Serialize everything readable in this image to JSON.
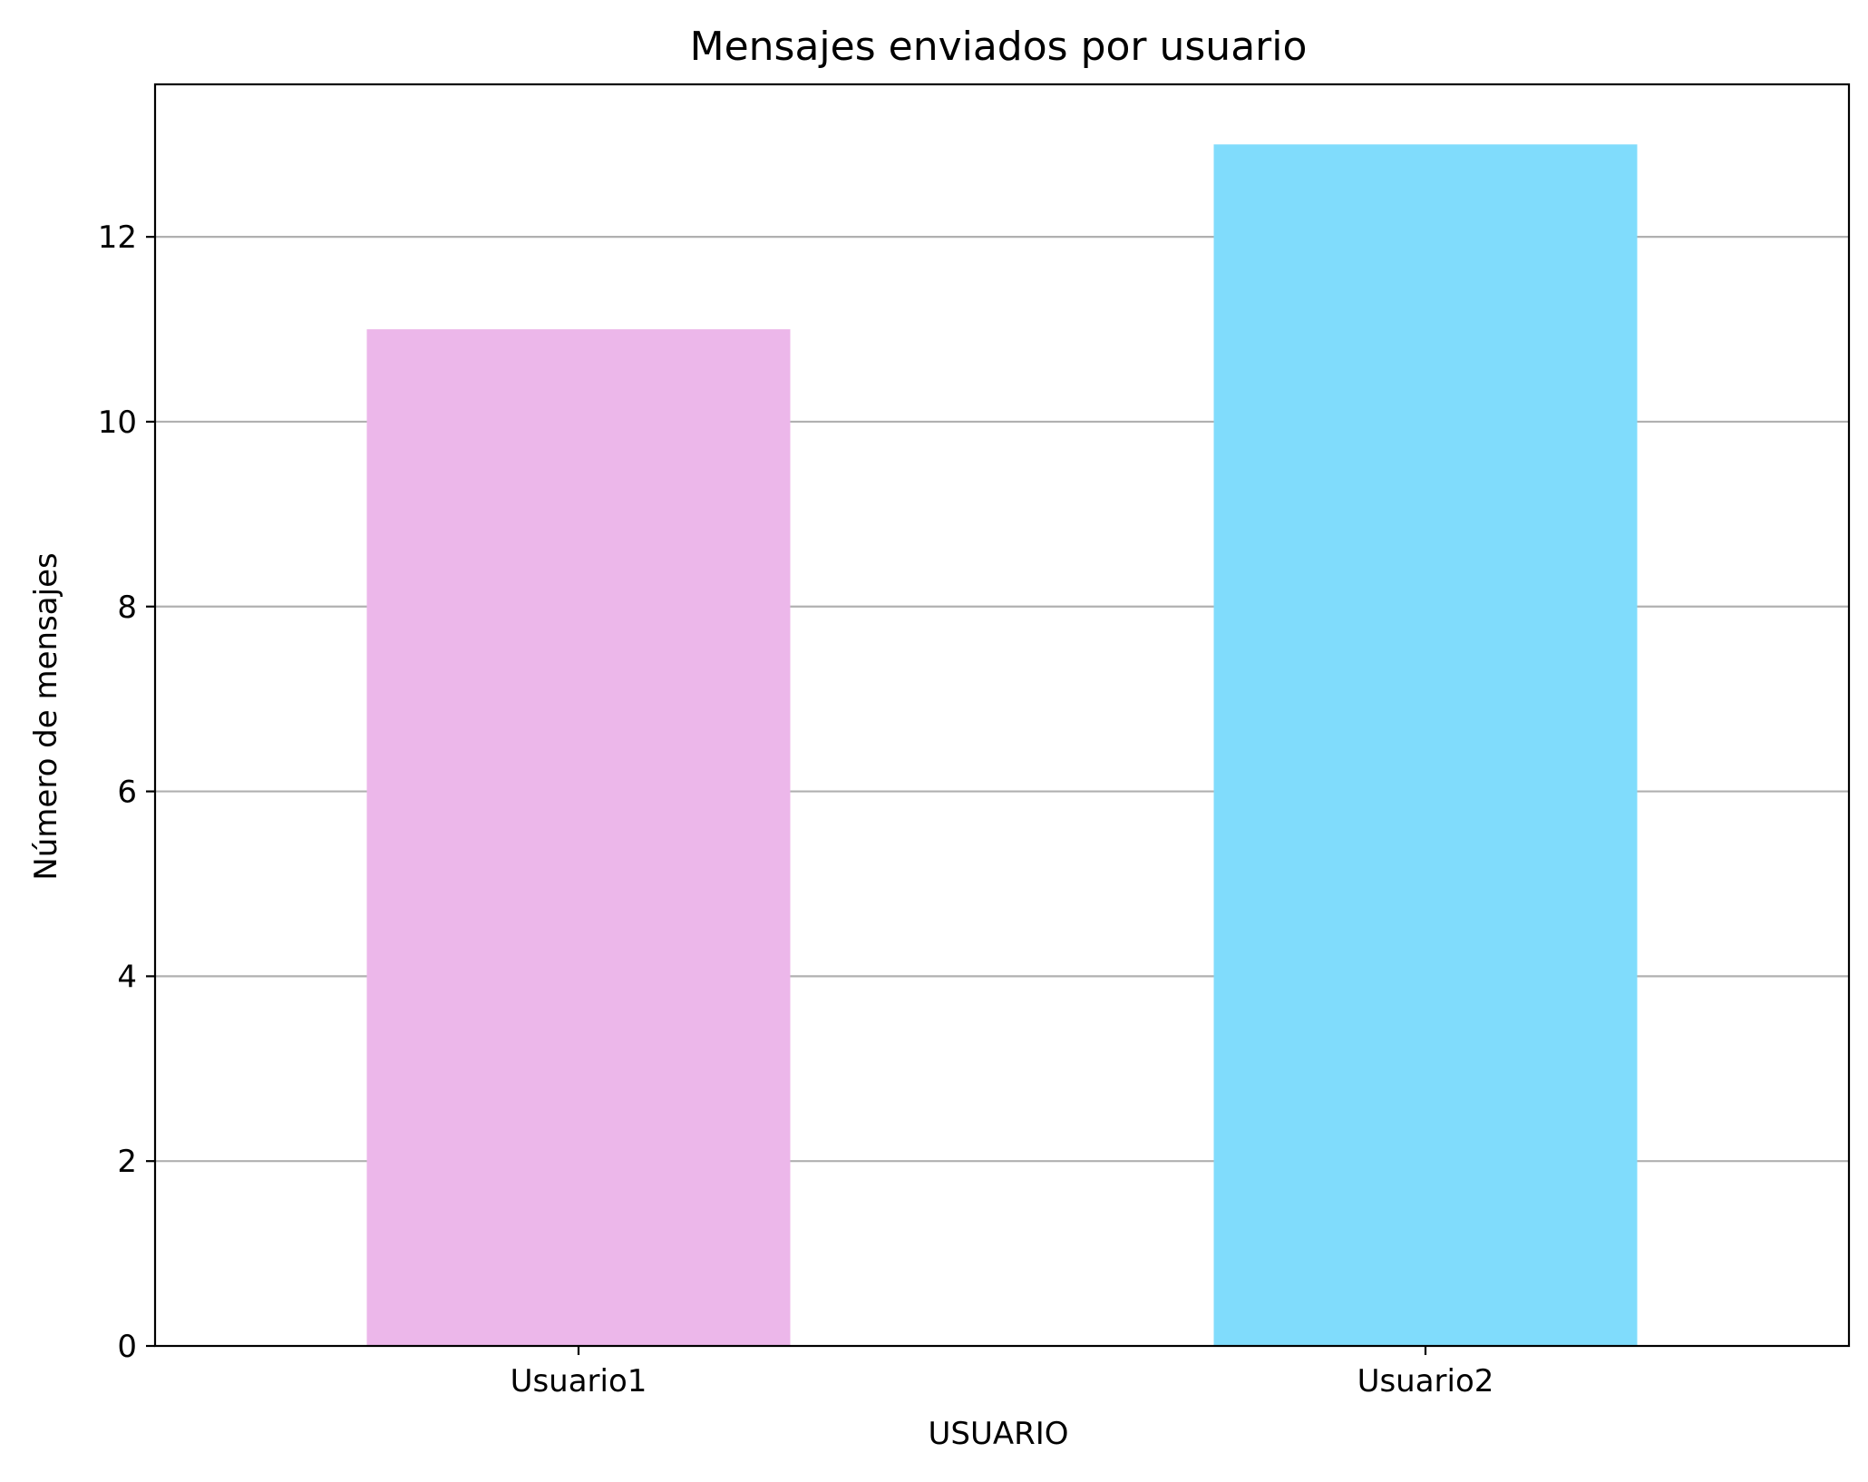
{
  "chart_data": {
    "type": "bar",
    "title": "Mensajes enviados por usuario",
    "xlabel": "USUARIO",
    "ylabel": "Número de mensajes",
    "categories": [
      "Usuario1",
      "Usuario2"
    ],
    "values": [
      11,
      13
    ],
    "colors": [
      "#ecb7ea",
      "#80dcfc"
    ],
    "ylim": [
      0,
      13.65
    ],
    "yticks": [
      0,
      2,
      4,
      6,
      8,
      10,
      12
    ],
    "ytick_labels": [
      "0",
      "2",
      "4",
      "6",
      "8",
      "10",
      "12"
    ],
    "grid": "y",
    "grid_color": "#b0b0b0"
  }
}
